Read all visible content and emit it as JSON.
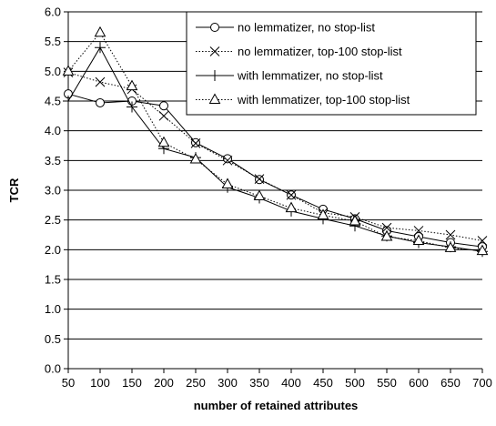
{
  "chart_data": {
    "type": "line",
    "xlabel": "number of retained attributes",
    "ylabel": "TCR",
    "x": [
      50,
      100,
      150,
      200,
      250,
      300,
      350,
      400,
      450,
      500,
      550,
      600,
      650,
      700
    ],
    "xticks": [
      "50",
      "100",
      "150",
      "200",
      "250",
      "300",
      "350",
      "400",
      "450",
      "500",
      "550",
      "600",
      "650",
      "700"
    ],
    "ylim": [
      0,
      6
    ],
    "yticks": [
      "0.0",
      "0.5",
      "1.0",
      "1.5",
      "2.0",
      "2.5",
      "3.0",
      "3.5",
      "4.0",
      "4.5",
      "5.0",
      "5.5",
      "6.0"
    ],
    "grid": "horizontal",
    "legend_position": "top-right",
    "series": [
      {
        "name": "no lemmatizer, no stop-list",
        "marker": "circle",
        "line": "solid",
        "values": [
          4.62,
          4.47,
          4.5,
          4.42,
          3.8,
          3.53,
          3.18,
          2.92,
          2.68,
          2.52,
          2.32,
          2.22,
          2.12,
          2.05
        ]
      },
      {
        "name": "no lemmatizer, top-100 stop-list",
        "marker": "x",
        "line": "dotted",
        "values": [
          4.98,
          4.82,
          4.7,
          4.25,
          3.79,
          3.5,
          3.19,
          2.92,
          2.62,
          2.55,
          2.37,
          2.32,
          2.25,
          2.15
        ]
      },
      {
        "name": "with lemmatizer, no stop-list",
        "marker": "plus",
        "line": "solid",
        "values": [
          4.5,
          5.4,
          4.4,
          3.7,
          3.55,
          3.05,
          2.87,
          2.65,
          2.52,
          2.4,
          2.23,
          2.12,
          2.05,
          1.97
        ]
      },
      {
        "name": "with lemmatizer, top-100 stop-list",
        "marker": "triangle",
        "line": "dotted",
        "values": [
          5.0,
          5.65,
          4.75,
          3.8,
          3.52,
          3.1,
          2.9,
          2.7,
          2.58,
          2.48,
          2.22,
          2.15,
          2.03,
          1.98
        ]
      }
    ]
  }
}
